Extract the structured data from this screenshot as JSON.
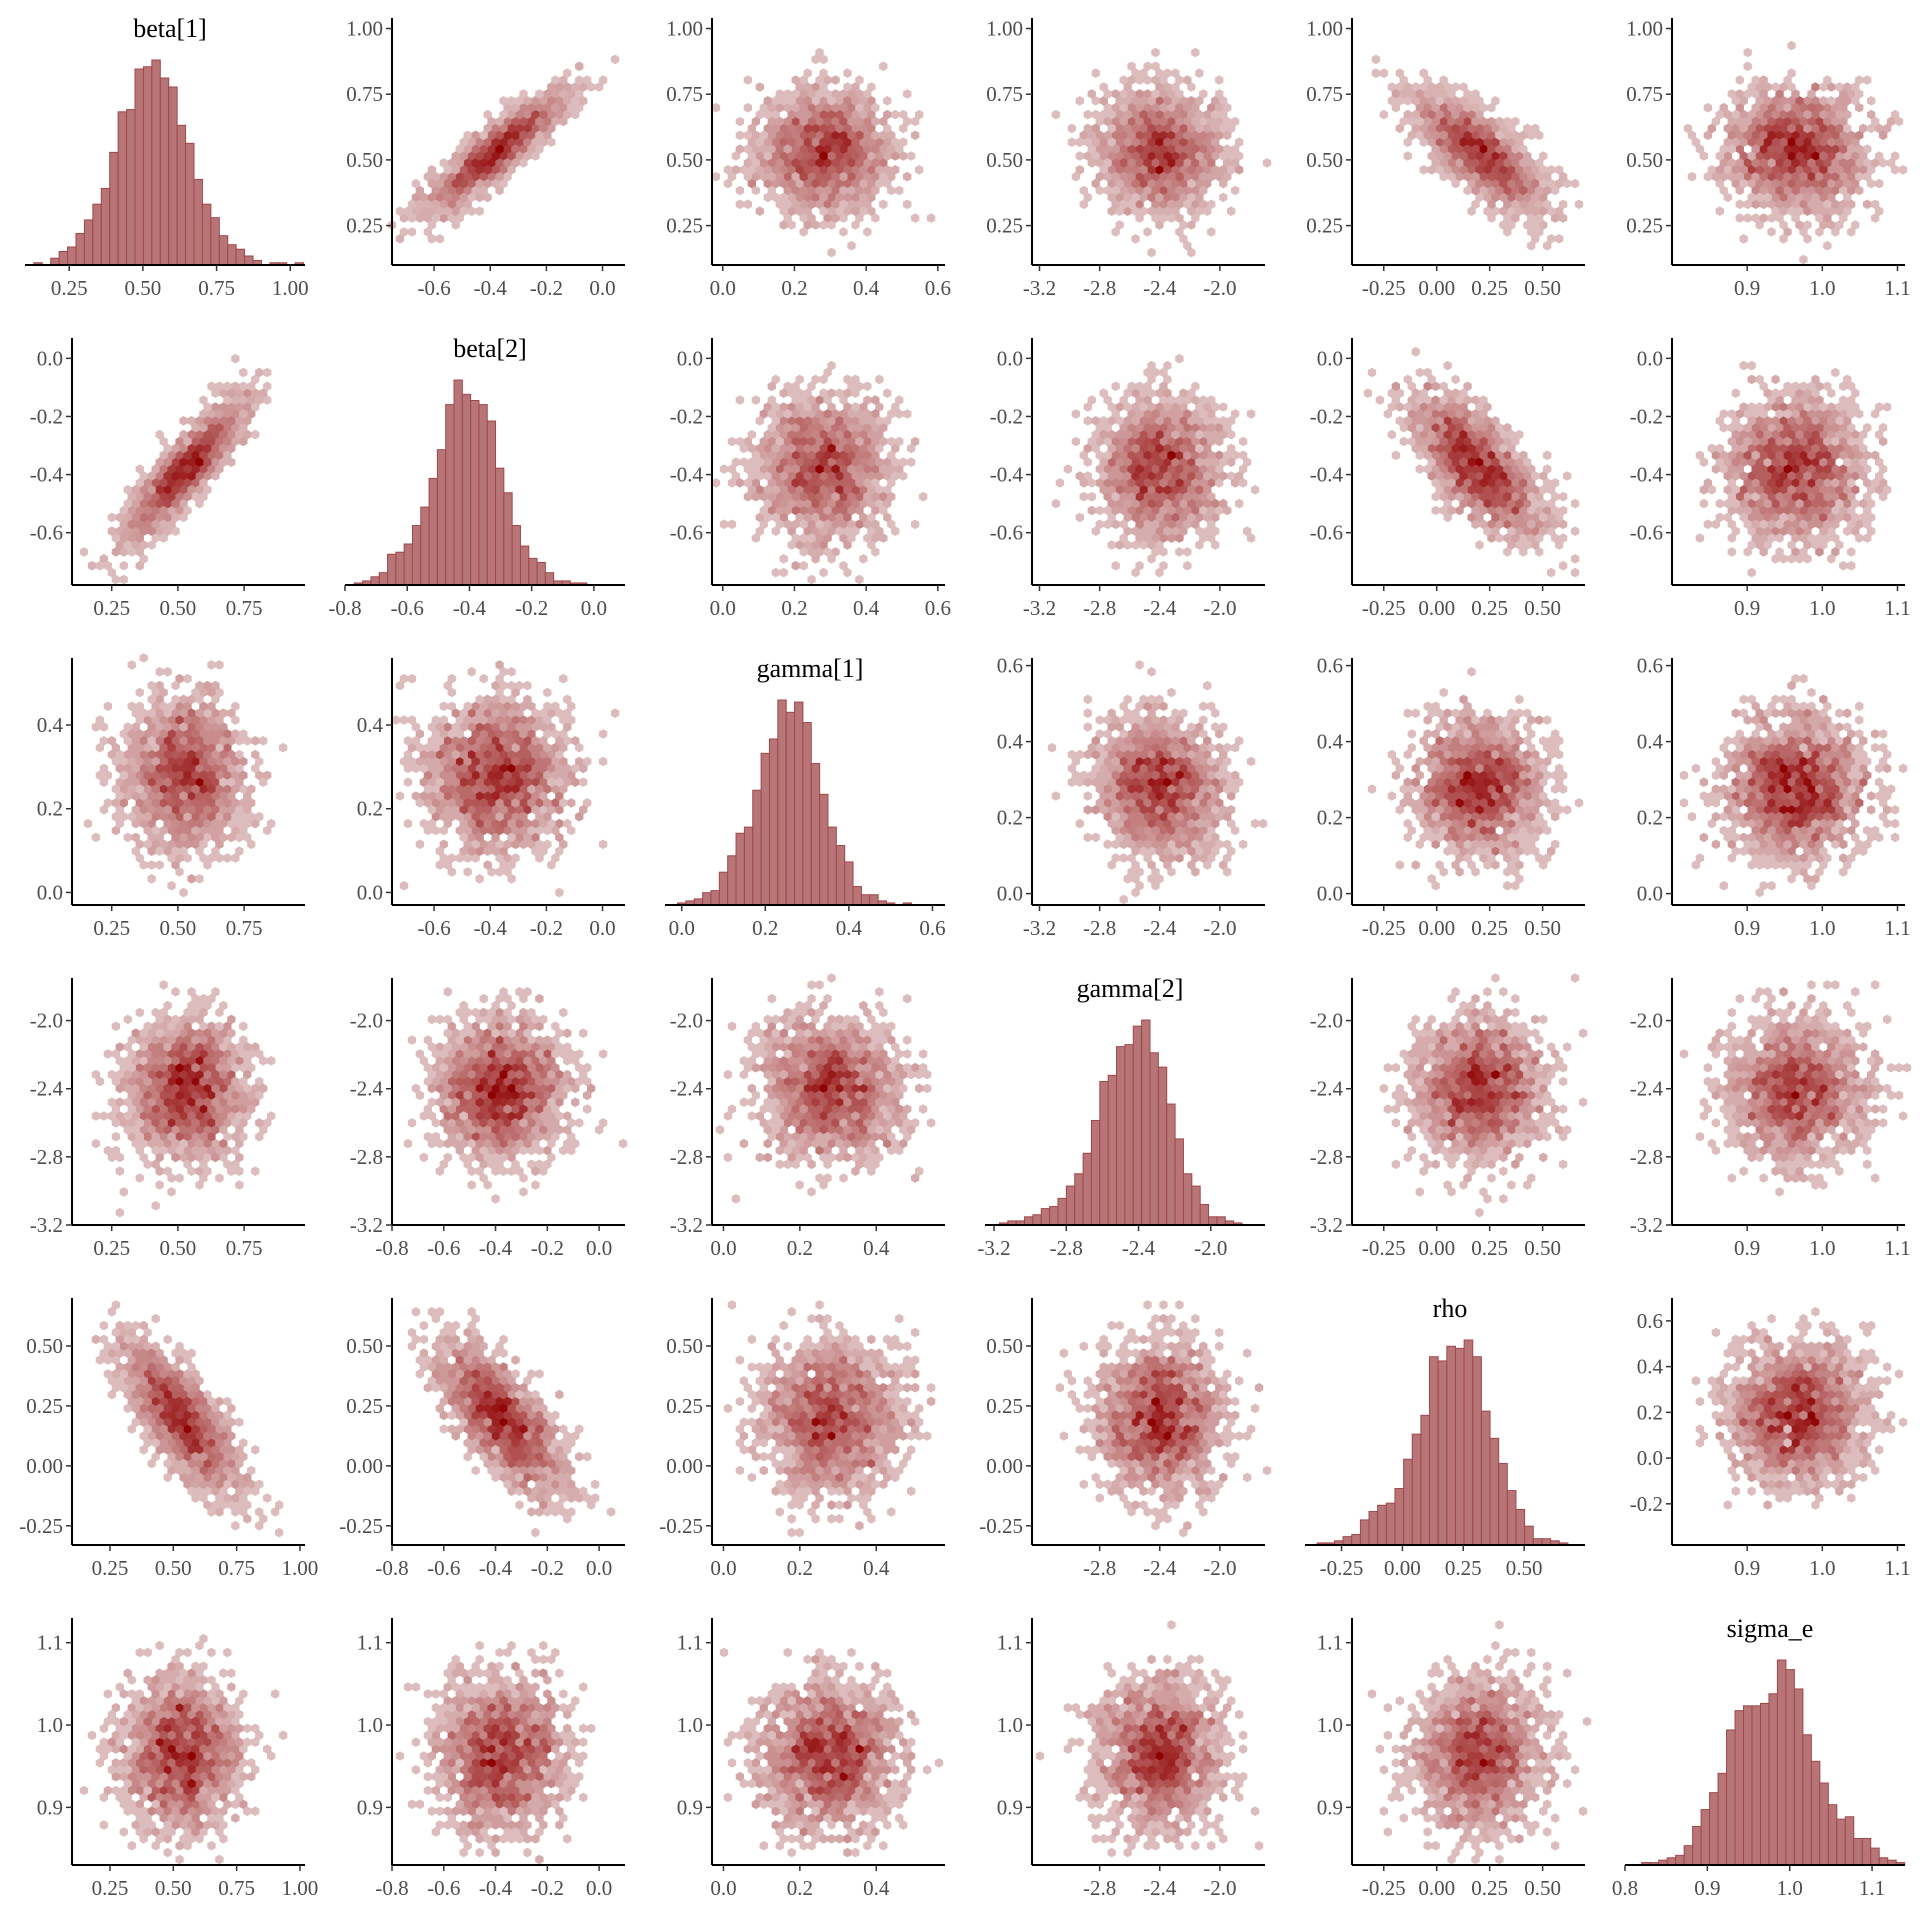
{
  "chart_data": {
    "type": "pairs",
    "description": "MCMC posterior pairs plot: diagonal histograms, off-diagonal hexbin density scatter",
    "parameters": [
      "beta[1]",
      "beta[2]",
      "gamma[1]",
      "gamma[2]",
      "rho",
      "sigma_e"
    ],
    "diag_titles": [
      "beta[1]",
      "beta[2]",
      "gamma[1]",
      "gamma[2]",
      "rho",
      "sigma_e"
    ],
    "colors": {
      "hist_fill": "#b87577",
      "hist_stroke": "#a0474a",
      "hex_low": "#dcbcbc",
      "hex_high": "#8f0000",
      "axis": "#000000",
      "tick_text": "#4d4d4d",
      "title_text": "#000000"
    },
    "summary": {
      "beta[1]": {
        "mean": 0.53,
        "sd": 0.11,
        "min": 0.13,
        "max": 1.01
      },
      "beta[2]": {
        "mean": -0.38,
        "sd": 0.12,
        "min": -0.77,
        "max": 0.06
      },
      "gamma[1]": {
        "mean": 0.28,
        "sd": 0.09,
        "min": -0.01,
        "max": 0.6
      },
      "gamma[2]": {
        "mean": -2.4,
        "sd": 0.2,
        "min": -3.17,
        "max": -1.75
      },
      "rho": {
        "mean": 0.2,
        "sd": 0.15,
        "min": -0.35,
        "max": 0.68
      },
      "sigma_e": {
        "mean": 0.965,
        "sd": 0.045,
        "min": 0.81,
        "max": 1.13
      }
    },
    "correlations": [
      [
        1.0,
        0.88,
        0.0,
        0.0,
        -0.75,
        0.0
      ],
      [
        0.88,
        1.0,
        0.0,
        0.0,
        -0.7,
        0.0
      ],
      [
        0.0,
        0.0,
        1.0,
        -0.1,
        0.0,
        0.0
      ],
      [
        0.0,
        0.0,
        -0.1,
        1.0,
        0.0,
        0.0
      ],
      [
        -0.75,
        -0.7,
        0.0,
        0.0,
        1.0,
        0.05
      ],
      [
        0.0,
        0.0,
        0.0,
        0.0,
        0.05,
        1.0
      ]
    ],
    "histograms": {
      "beta[1]": {
        "xlim": [
          0.1,
          1.05
        ],
        "bin_start": 0.13,
        "bin_width": 0.0286,
        "counts": [
          1,
          0,
          3,
          6,
          8,
          14,
          20,
          27,
          34,
          50,
          68,
          69,
          87,
          88,
          91,
          83,
          79,
          62,
          54,
          38,
          27,
          21,
          13,
          9,
          7,
          4,
          2,
          0,
          1,
          1,
          0,
          1
        ]
      },
      "beta[2]": {
        "xlim": [
          -0.8,
          0.1
        ],
        "bin_start": -0.77,
        "bin_width": 0.0267,
        "counts": [
          1,
          2,
          4,
          6,
          15,
          16,
          20,
          29,
          38,
          52,
          66,
          88,
          100,
          93,
          90,
          88,
          80,
          57,
          45,
          29,
          19,
          13,
          11,
          6,
          2,
          2,
          1,
          1
        ]
      },
      "gamma[1]": {
        "xlim": [
          -0.04,
          0.63
        ],
        "bin_start": -0.01,
        "bin_width": 0.02,
        "counts": [
          1,
          2,
          3,
          6,
          7,
          16,
          24,
          35,
          38,
          56,
          74,
          81,
          100,
          94,
          99,
          89,
          69,
          54,
          38,
          29,
          21,
          9,
          5,
          5,
          2,
          1,
          0,
          1
        ]
      },
      "gamma[2]": {
        "xlim": [
          -3.25,
          -1.7
        ],
        "bin_start": -3.17,
        "bin_width": 0.0463,
        "counts": [
          1,
          2,
          2,
          4,
          5,
          8,
          9,
          13,
          19,
          25,
          35,
          51,
          70,
          73,
          87,
          88,
          97,
          100,
          84,
          77,
          59,
          42,
          25,
          19,
          10,
          4,
          4,
          2,
          1
        ]
      },
      "rho": {
        "xlim": [
          -0.4,
          0.75
        ],
        "bin_start": -0.35,
        "bin_width": 0.0355,
        "counts": [
          1,
          1,
          2,
          4,
          5,
          12,
          16,
          19,
          20,
          27,
          41,
          53,
          62,
          90,
          88,
          95,
          94,
          98,
          90,
          64,
          51,
          39,
          26,
          17,
          9,
          3,
          3,
          2,
          1
        ]
      },
      "sigma_e": {
        "xlim": [
          0.8,
          1.14
        ],
        "bin_start": 0.81,
        "bin_width": 0.0103,
        "counts": [
          0,
          1,
          1,
          2,
          3,
          4,
          8,
          16,
          23,
          30,
          38,
          56,
          64,
          66,
          66,
          67,
          71,
          85,
          81,
          73,
          54,
          43,
          34,
          25,
          19,
          20,
          11,
          11,
          7,
          3,
          2,
          1
        ]
      }
    },
    "axes": {
      "beta[1]": {
        "xlim_scatter": [
          0.1,
          1.02
        ],
        "xticks": [
          0.25,
          0.5,
          0.75,
          1.0
        ],
        "xtick_labels": [
          "0.25",
          "0.50",
          "0.75",
          "1.00"
        ],
        "ylim": [
          0.1,
          1.04
        ],
        "yticks": [
          0.25,
          0.5,
          0.75,
          1.0
        ],
        "ytick_labels": [
          "0.25",
          "0.50",
          "0.75",
          "1.00"
        ]
      },
      "beta[2]": {
        "xlim_scatter": [
          -0.8,
          0.1
        ],
        "xticks": [
          -0.8,
          -0.6,
          -0.4,
          -0.2,
          0.0
        ],
        "xtick_labels": [
          "-0.8",
          "-0.6",
          "-0.4",
          "-0.2",
          "0.0"
        ],
        "ylim": [
          -0.78,
          0.07
        ],
        "yticks": [
          -0.6,
          -0.4,
          -0.2,
          0.0
        ],
        "ytick_labels": [
          "-0.6",
          "-0.4",
          "-0.2",
          "0.0"
        ]
      },
      "gamma[1]": {
        "xlim_scatter": [
          -0.03,
          0.62
        ],
        "xticks": [
          0.0,
          0.2,
          0.4,
          0.6
        ],
        "xtick_labels": [
          "0.0",
          "0.2",
          "0.4",
          "0.6"
        ],
        "ylim": [
          -0.03,
          0.62
        ],
        "yticks": [
          0.0,
          0.2,
          0.4,
          0.6
        ],
        "ytick_labels": [
          "0.0",
          "0.2",
          "0.4",
          "0.6"
        ]
      },
      "gamma[2]": {
        "xlim_scatter": [
          -3.25,
          -1.7
        ],
        "xticks": [
          -3.2,
          -2.8,
          -2.4,
          -2.0
        ],
        "xtick_labels": [
          "-3.2",
          "-2.8",
          "-2.4",
          "-2.0"
        ],
        "ylim": [
          -3.2,
          -1.75
        ],
        "yticks": [
          -3.2,
          -2.8,
          -2.4,
          -2.0
        ],
        "ytick_labels": [
          "-3.2",
          "-2.8",
          "-2.4",
          "-2.0"
        ]
      },
      "rho": {
        "xlim_scatter": [
          -0.4,
          0.7
        ],
        "xticks": [
          -0.25,
          0.0,
          0.25,
          0.5
        ],
        "xtick_labels": [
          "-0.25",
          "0.00",
          "0.25",
          "0.50"
        ],
        "ylim": [
          -0.33,
          0.7
        ],
        "yticks": [
          -0.25,
          0.0,
          0.25,
          0.5
        ],
        "ytick_labels": [
          "-0.25",
          "0.00",
          "0.25",
          "0.50"
        ]
      },
      "sigma_e": {
        "xlim_scatter": [
          0.8,
          1.11
        ],
        "xticks": [
          0.9,
          1.0,
          1.1
        ],
        "xtick_labels": [
          "0.9",
          "1.0",
          "1.1"
        ],
        "ylim": [
          0.83,
          1.13
        ],
        "yticks": [
          0.9,
          1.0,
          1.1
        ],
        "ytick_labels": [
          "0.9",
          "1.0",
          "1.1"
        ]
      }
    },
    "overrides": {
      "rho_vs_sigma_e_yticks": {
        "ylim": [
          -0.38,
          0.7
        ],
        "yticks": [
          -0.2,
          0.0,
          0.2,
          0.4,
          0.6
        ],
        "ytick_labels": [
          "-0.2",
          "0.0",
          "0.2",
          "0.4",
          "0.6"
        ]
      },
      "gamma1_row_yticks": {
        "ylim": [
          -0.03,
          0.56
        ],
        "yticks": [
          0.0,
          0.2,
          0.4
        ],
        "ytick_labels": [
          "0.0",
          "0.2",
          "0.4"
        ]
      },
      "gamma1_col_xticks_short": {
        "xlim_scatter": [
          -0.03,
          0.58
        ],
        "xticks": [
          0.0,
          0.2,
          0.4
        ],
        "xtick_labels": [
          "0.0",
          "0.2",
          "0.4"
        ]
      },
      "beta1_col_xticks_short": {
        "xlim_scatter": [
          0.1,
          0.98
        ],
        "xticks": [
          0.25,
          0.5,
          0.75
        ],
        "xtick_labels": [
          "0.25",
          "0.50",
          "0.75"
        ]
      },
      "beta2_col_xticks_short": {
        "xlim_scatter": [
          -0.75,
          0.08
        ],
        "xticks": [
          -0.6,
          -0.4,
          -0.2,
          0.0
        ],
        "xtick_labels": [
          "-0.6",
          "-0.4",
          "-0.2",
          "0.0"
        ]
      },
      "gamma2_col_xticks_short": {
        "xlim_scatter": [
          -3.25,
          -1.7
        ],
        "xticks": [
          -2.8,
          -2.4,
          -2.0
        ],
        "xtick_labels": [
          "-2.8",
          "-2.4",
          "-2.0"
        ]
      },
      "beta2_row_yticks": {
        "ylim": [
          -0.78,
          0.07
        ],
        "yticks": [
          -0.6,
          -0.4,
          -0.2,
          0.0
        ],
        "ytick_labels": [
          "-0.6",
          "-0.4",
          "-0.2",
          "0.0"
        ]
      }
    }
  }
}
